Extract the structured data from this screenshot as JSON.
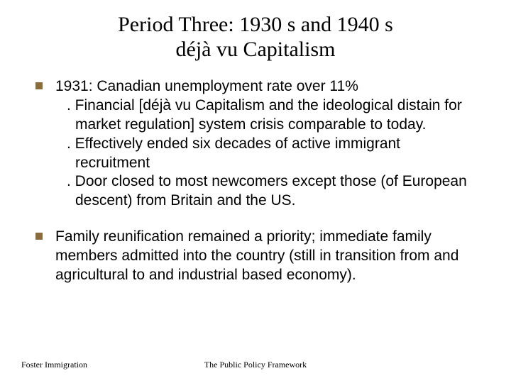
{
  "title": {
    "line1": "Period Three: 1930 s and 1940 s",
    "line2": "déjà vu Capitalism",
    "fontsize": 30,
    "color": "#000000"
  },
  "body_fontsize": 21,
  "bullet_color": "#8a6d3b",
  "bullets": [
    {
      "lead": "1931: Canadian unemployment rate over 11%",
      "subs": [
        ". Financial [déjà vu Capitalism and the ideological distain for market regulation] system crisis comparable to today.",
        ". Effectively ended six decades of active immigrant recruitment",
        ". Door closed to most newcomers except those (of European descent) from Britain and the US."
      ]
    },
    {
      "lead": "Family reunification remained a priority; immediate family members admitted into the country (still in transition from and agricultural to and industrial based economy).",
      "subs": []
    }
  ],
  "footer": {
    "left": "Foster Immigration",
    "center": "The Public Policy Framework",
    "fontsize": 12
  },
  "background_color": "#ffffff"
}
